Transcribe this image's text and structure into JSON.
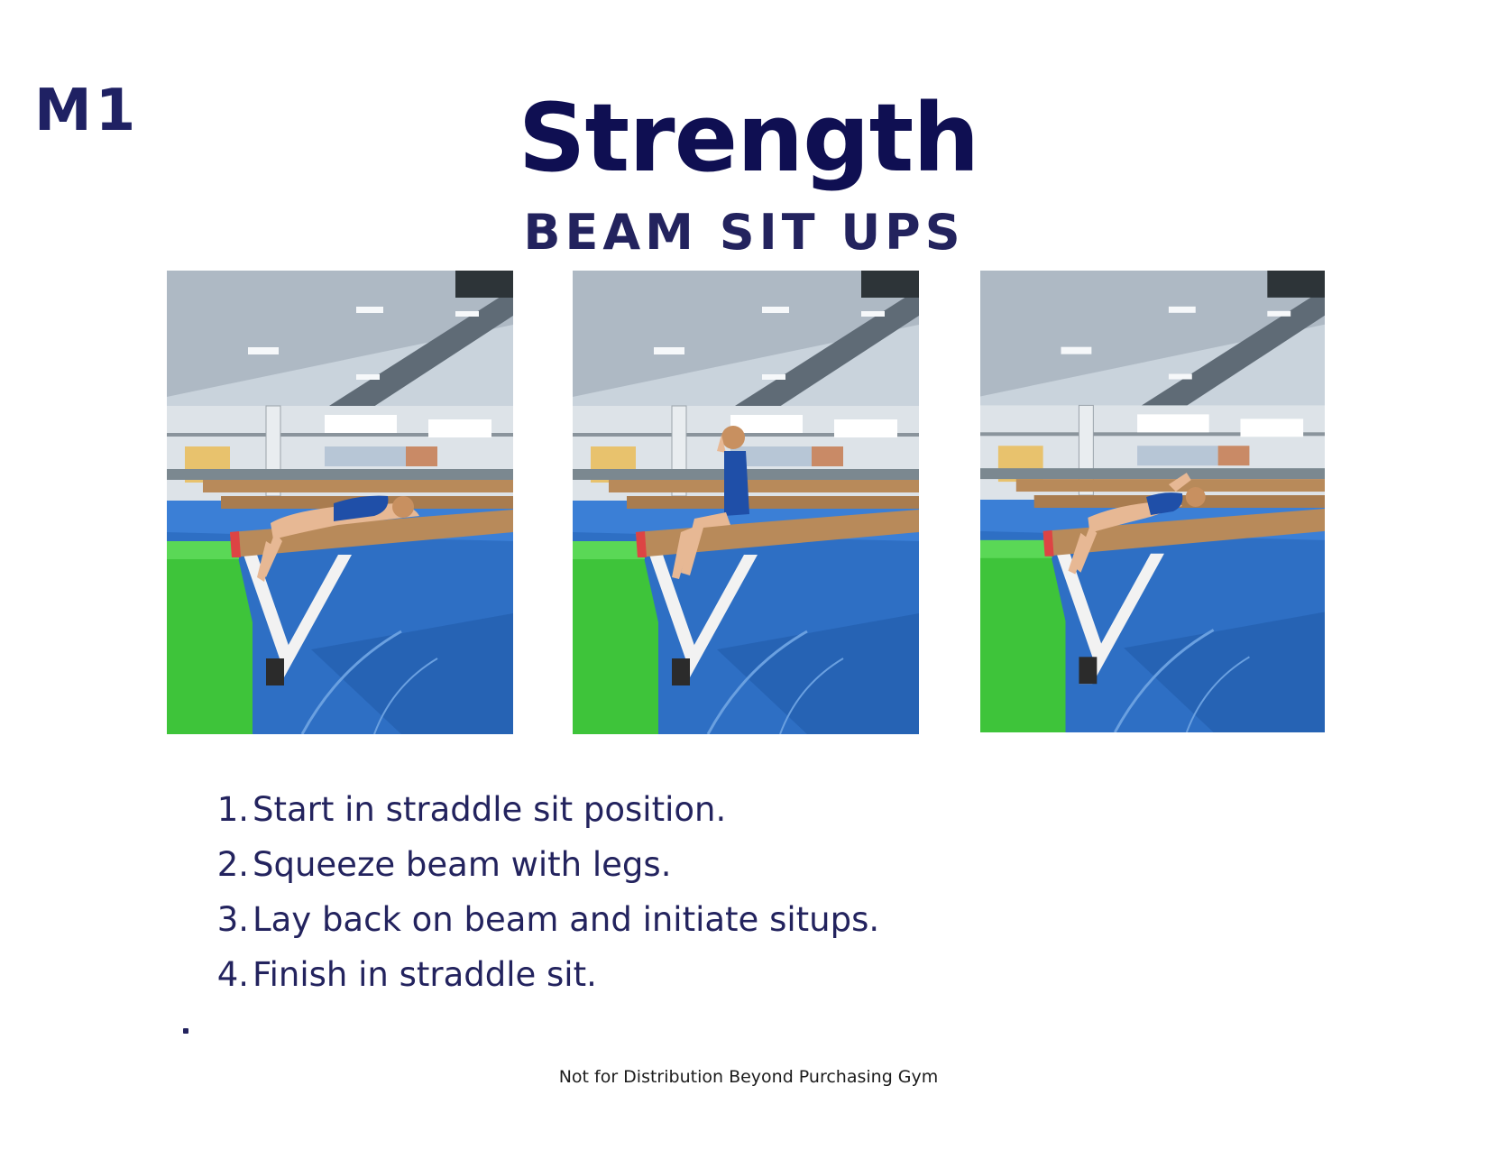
{
  "header": {
    "level_code": "M1",
    "title": "Strength",
    "subtitle": "BEAM SIT UPS"
  },
  "photos": [
    {
      "pose": "lying-back-on-beam"
    },
    {
      "pose": "straddle-sit-upright"
    },
    {
      "pose": "sit-up-curl"
    }
  ],
  "steps": [
    {
      "number": "1.",
      "text": "Start in straddle sit position."
    },
    {
      "number": "2.",
      "text": "Squeeze beam with legs."
    },
    {
      "number": "3.",
      "text": "Lay back on beam and initiate situps."
    },
    {
      "number": "4.",
      "text": "Finish in straddle sit."
    }
  ],
  "footer": {
    "notice": "Not for Distribution Beyond Purchasing Gym"
  },
  "colors": {
    "title": "#0f0f52",
    "text": "#23235e",
    "mat_blue": "#2e6fc4",
    "mat_green": "#3ec43a",
    "beam": "#b88a5a",
    "leotard": "#1f4fa8"
  }
}
